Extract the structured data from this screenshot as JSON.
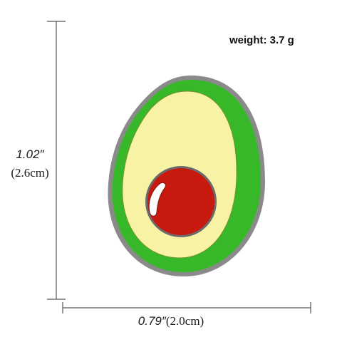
{
  "weight_text": "weight: 3.7 g",
  "dimensions": {
    "height_inch": "1.02″",
    "height_cm": "(2.6cm)",
    "width_inch": "0.79″",
    "width_cm": "(2.0cm)"
  },
  "pin": {
    "subject": "avocado enamel pin",
    "colors": {
      "rim": "#8a8a8a",
      "skin": "#37b829",
      "flesh": "#f8f2a4",
      "pit": "#c8190f",
      "highlight": "#ffffff"
    }
  }
}
